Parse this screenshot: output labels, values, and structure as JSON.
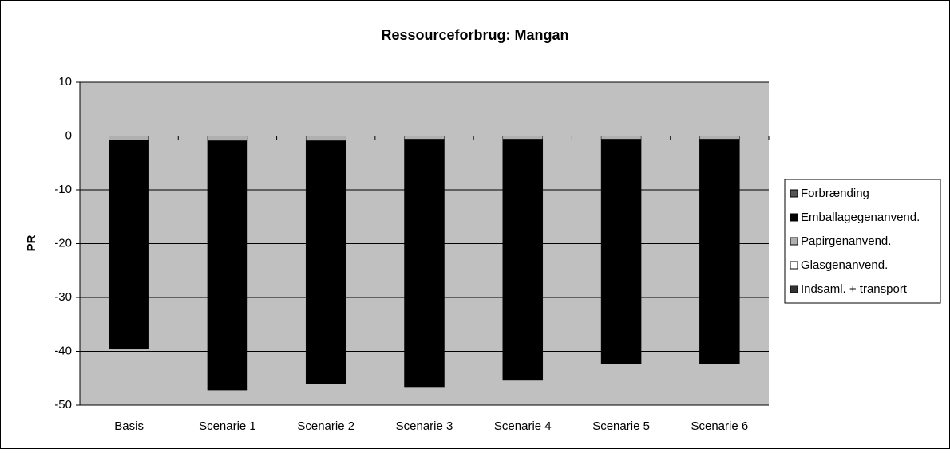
{
  "chart_data": {
    "type": "stacked_bar",
    "title": "Ressourceforbrug: Mangan",
    "y_label": "PR",
    "categories": [
      "Basis",
      "Scenarie 1",
      "Scenarie 2",
      "Scenarie 3",
      "Scenarie 4",
      "Scenarie 5",
      "Scenarie 6"
    ],
    "series": [
      {
        "name": "Forbrænding",
        "color": "#555555",
        "values": [
          0,
          0,
          0,
          0,
          0,
          0,
          0
        ]
      },
      {
        "name": "Emballagegenanvend.",
        "color": "#000000",
        "values": [
          -38.8,
          -46.3,
          -45.1,
          -46.0,
          -44.8,
          -41.7,
          -41.7
        ]
      },
      {
        "name": "Papirgenanvend.",
        "color": "#b0b0b0",
        "values": [
          -0.8,
          -0.9,
          -0.9,
          -0.6,
          -0.6,
          -0.6,
          -0.6
        ]
      },
      {
        "name": "Glasgenanvend.",
        "color": "#ffffff",
        "values": [
          0,
          0,
          0,
          0,
          0,
          0,
          0
        ]
      },
      {
        "name": "Indsaml. + transport",
        "color": "#333333",
        "values": [
          0,
          0,
          0,
          0,
          0,
          0,
          0
        ]
      }
    ],
    "ylim": [
      -50,
      10
    ],
    "yticks": [
      -50,
      -40,
      -30,
      -20,
      -10,
      0,
      10
    ],
    "grid": true,
    "legend": "right"
  }
}
